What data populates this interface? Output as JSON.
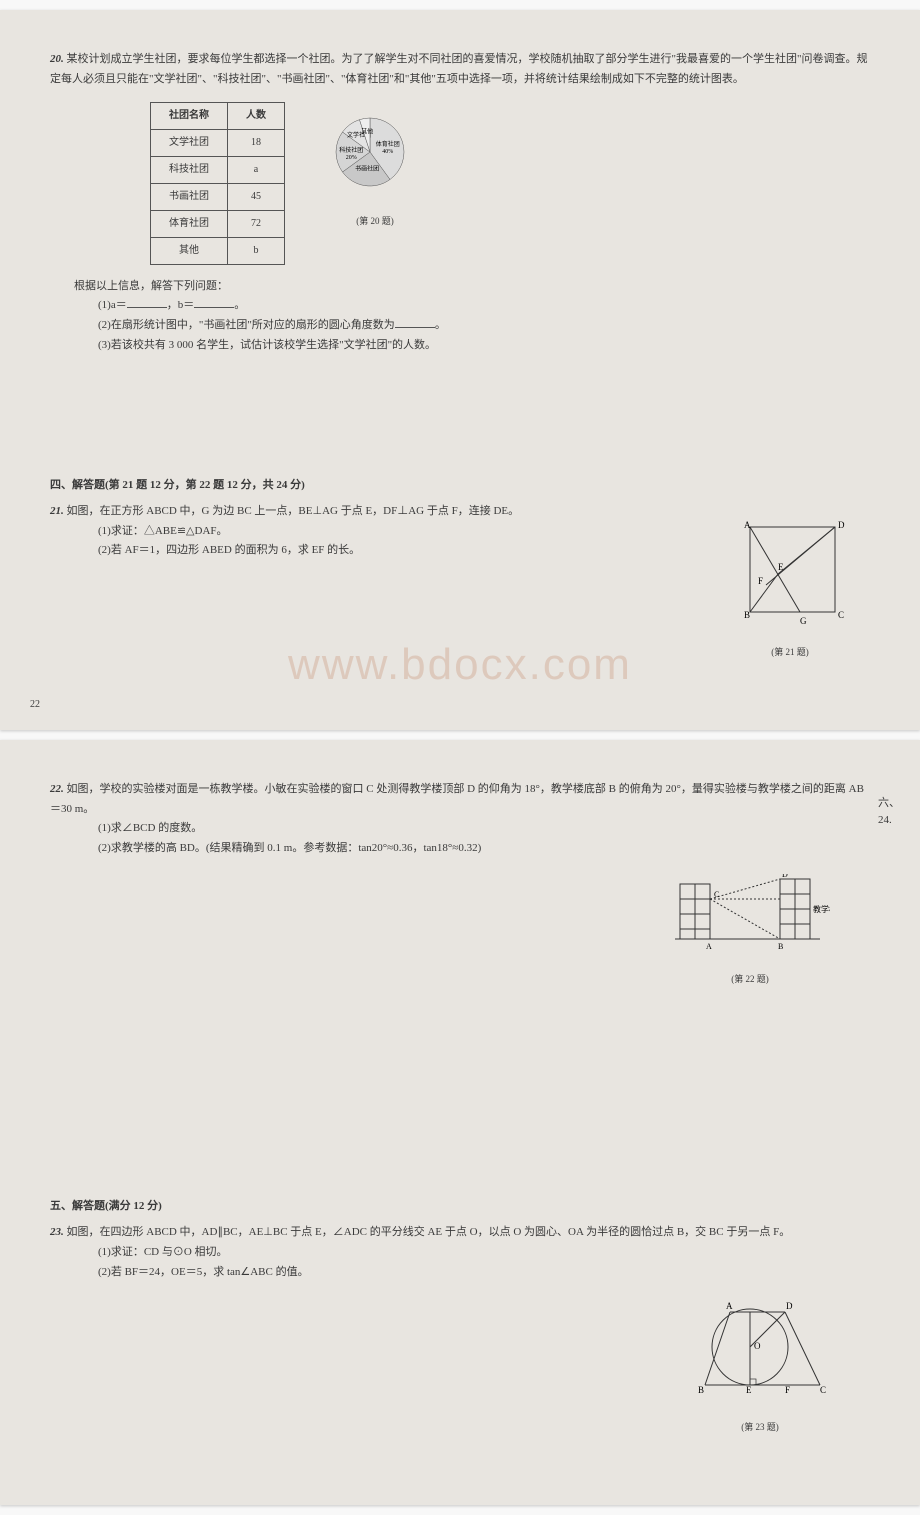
{
  "watermark": "www.bdocx.com",
  "p20": {
    "num": "20.",
    "text": "某校计划成立学生社团，要求每位学生都选择一个社团。为了了解学生对不同社团的喜爱情况，学校随机抽取了部分学生进行\"我最喜爱的一个学生社团\"问卷调查。规定每人必须且只能在\"文学社团\"、\"科技社团\"、\"书画社团\"、\"体育社团\"和\"其他\"五项中选择一项，并将统计结果绘制成如下不完整的统计图表。",
    "table_headers": [
      "社团名称",
      "人数"
    ],
    "table_rows": [
      [
        "文学社团",
        "18"
      ],
      [
        "科技社团",
        "a"
      ],
      [
        "书画社团",
        "45"
      ],
      [
        "体育社团",
        "72"
      ],
      [
        "其他",
        "b"
      ]
    ],
    "pie": {
      "slices": [
        {
          "label": "体育社团",
          "sub": "40%",
          "color": "#dcdcdc",
          "angle_start": -90,
          "angle_span": 144
        },
        {
          "label": "书画社团",
          "sub": "",
          "color": "#c8c8c8",
          "angle_start": 54,
          "angle_span": 90
        },
        {
          "label": "科技社团",
          "sub": "20%",
          "color": "#d5d5d5",
          "angle_start": 144,
          "angle_span": 72
        },
        {
          "label": "文学社团",
          "sub": "",
          "color": "#e3e3e3",
          "angle_start": 216,
          "angle_span": 36
        },
        {
          "label": "其他",
          "sub": "",
          "color": "#eeeeee",
          "angle_start": 252,
          "angle_span": 18
        }
      ],
      "caption": "(第 20 题)"
    },
    "sub_intro": "根据以上信息，解答下列问题：",
    "q1_pre": "(1)a＝",
    "q1_mid": "，b＝",
    "q1_post": "。",
    "q2_pre": "(2)在扇形统计图中，\"书画社团\"所对应的扇形的圆心角度数为",
    "q2_post": "。",
    "q3": "(3)若该校共有 3 000 名学生，试估计该校学生选择\"文学社团\"的人数。"
  },
  "section4": {
    "title": "四、解答题(第 21 题 12 分，第 22 题 12 分，共 24 分)"
  },
  "p21": {
    "num": "21.",
    "text": "如图，在正方形 ABCD 中，G 为边 BC 上一点，BE⊥AG 于点 E，DF⊥AG 于点 F，连接 DE。",
    "q1": "(1)求证：△ABE≌△DAF。",
    "q2": "(2)若 AF＝1，四边形 ABED 的面积为 6，求 EF 的长。",
    "caption": "(第 21 题)"
  },
  "page_mark_1": "22",
  "p22": {
    "num": "22.",
    "text": "如图，学校的实验楼对面是一栋教学楼。小敏在实验楼的窗口 C 处测得教学楼顶部 D 的仰角为 18°，教学楼底部 B 的俯角为 20°，量得实验楼与教学楼之间的距离 AB＝30 m。",
    "q1": "(1)求∠BCD 的度数。",
    "q2": "(2)求教学楼的高 BD。(结果精确到 0.1 m。参考数据：tan20°≈0.36，tan18°≈0.32)",
    "caption": "(第 22 题)",
    "side1": "六、",
    "side2": "24.",
    "label_building": "教学楼"
  },
  "section5": {
    "title": "五、解答题(满分 12 分)"
  },
  "p23": {
    "num": "23.",
    "text": "如图，在四边形 ABCD 中，AD∥BC，AE⊥BC 于点 E，∠ADC 的平分线交 AE 于点 O，以点 O 为圆心、OA 为半径的圆恰过点 B，交 BC 于另一点 F。",
    "q1": "(1)求证：CD 与⊙O 相切。",
    "q2": "(2)若 BF＝24，OE＝5，求 tan∠ABC 的值。",
    "caption": "(第 23 题)"
  }
}
